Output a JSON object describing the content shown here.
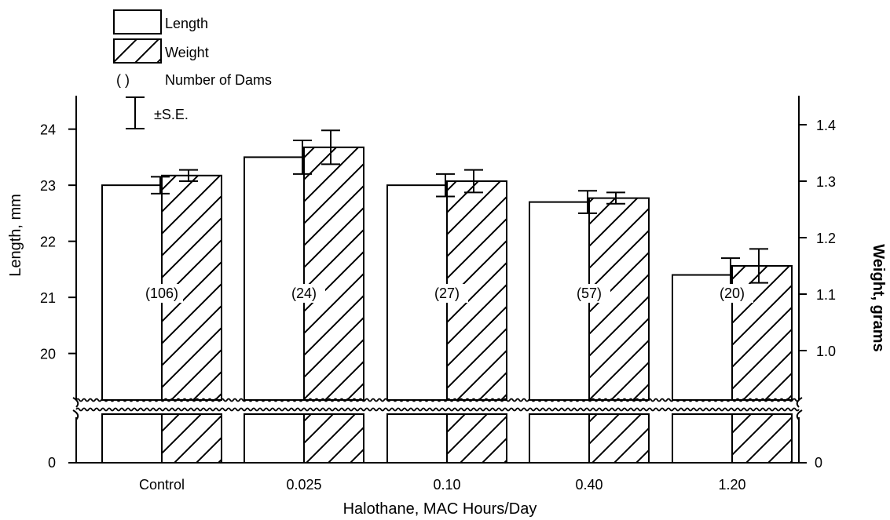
{
  "chart_data": {
    "type": "bar",
    "categories": [
      "Control",
      "0.025",
      "0.10",
      "0.40",
      "1.20"
    ],
    "xlabel": "Halothane, MAC Hours/Day",
    "ylabel": "Length, mm",
    "y2label": "Weight, grams",
    "ylim": [
      19.1,
      24.5
    ],
    "y2lim": [
      0.91,
      1.447
    ],
    "yticks": [
      "0",
      "20",
      "21",
      "22",
      "23",
      "24"
    ],
    "y2ticks": [
      "0",
      "1.0",
      "1.1",
      "1.2",
      "1.3",
      "1.4"
    ],
    "axis_break": true,
    "counts": [
      "(106)",
      "(24)",
      "(27)",
      "(57)",
      "(20)"
    ],
    "series": [
      {
        "name": "Length",
        "axis": "left",
        "values": [
          23.0,
          23.5,
          23.0,
          22.7,
          21.4
        ],
        "se": [
          0.15,
          0.3,
          0.2,
          0.2,
          0.3
        ]
      },
      {
        "name": "Weight",
        "axis": "right",
        "values": [
          1.31,
          1.36,
          1.3,
          1.27,
          1.15
        ],
        "se": [
          0.01,
          0.03,
          0.02,
          0.01,
          0.03
        ]
      }
    ],
    "legend": {
      "position": "top-left",
      "items": [
        "Length",
        "Weight"
      ],
      "count_label": "Number of Dams",
      "count_symbol": "( )",
      "se_label": "±S.E."
    }
  }
}
